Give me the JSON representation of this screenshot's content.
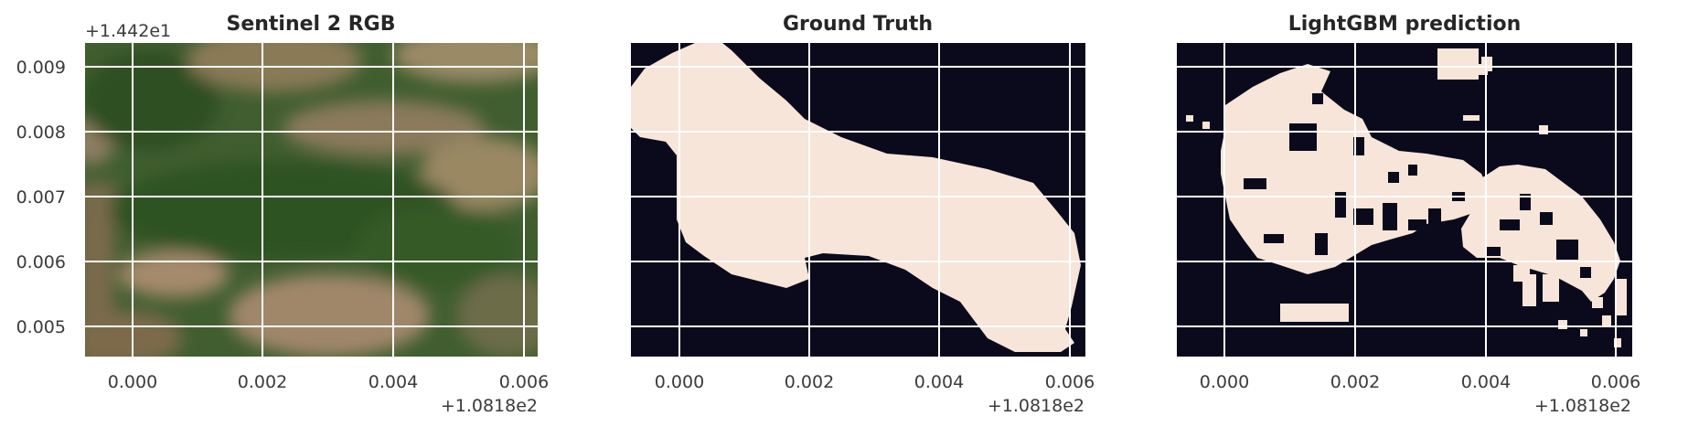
{
  "chart_data": [
    {
      "type": "image",
      "title": "Sentinel 2 RGB",
      "x_ticks": [
        "0.000",
        "0.002",
        "0.004",
        "0.006"
      ],
      "x_offset": "+1.0818e2",
      "y_ticks": [
        "0.009",
        "0.008",
        "0.007",
        "0.006",
        "0.005"
      ],
      "y_offset": "+1.442e1",
      "grid": true,
      "render": "satellite-rgb"
    },
    {
      "type": "image",
      "title": "Ground Truth",
      "x_ticks": [
        "0.000",
        "0.002",
        "0.004",
        "0.006"
      ],
      "x_offset": "+1.0818e2",
      "grid": true,
      "render": "mask-ground-truth"
    },
    {
      "type": "image",
      "title": "LightGBM prediction",
      "x_ticks": [
        "0.000",
        "0.002",
        "0.004",
        "0.006"
      ],
      "x_offset": "+1.0818e2",
      "grid": true,
      "render": "mask-prediction"
    }
  ],
  "colors": {
    "mask_background": "#0b0a1c",
    "mask_foreground": "#f7e5d9",
    "grid": "#ffffff"
  }
}
